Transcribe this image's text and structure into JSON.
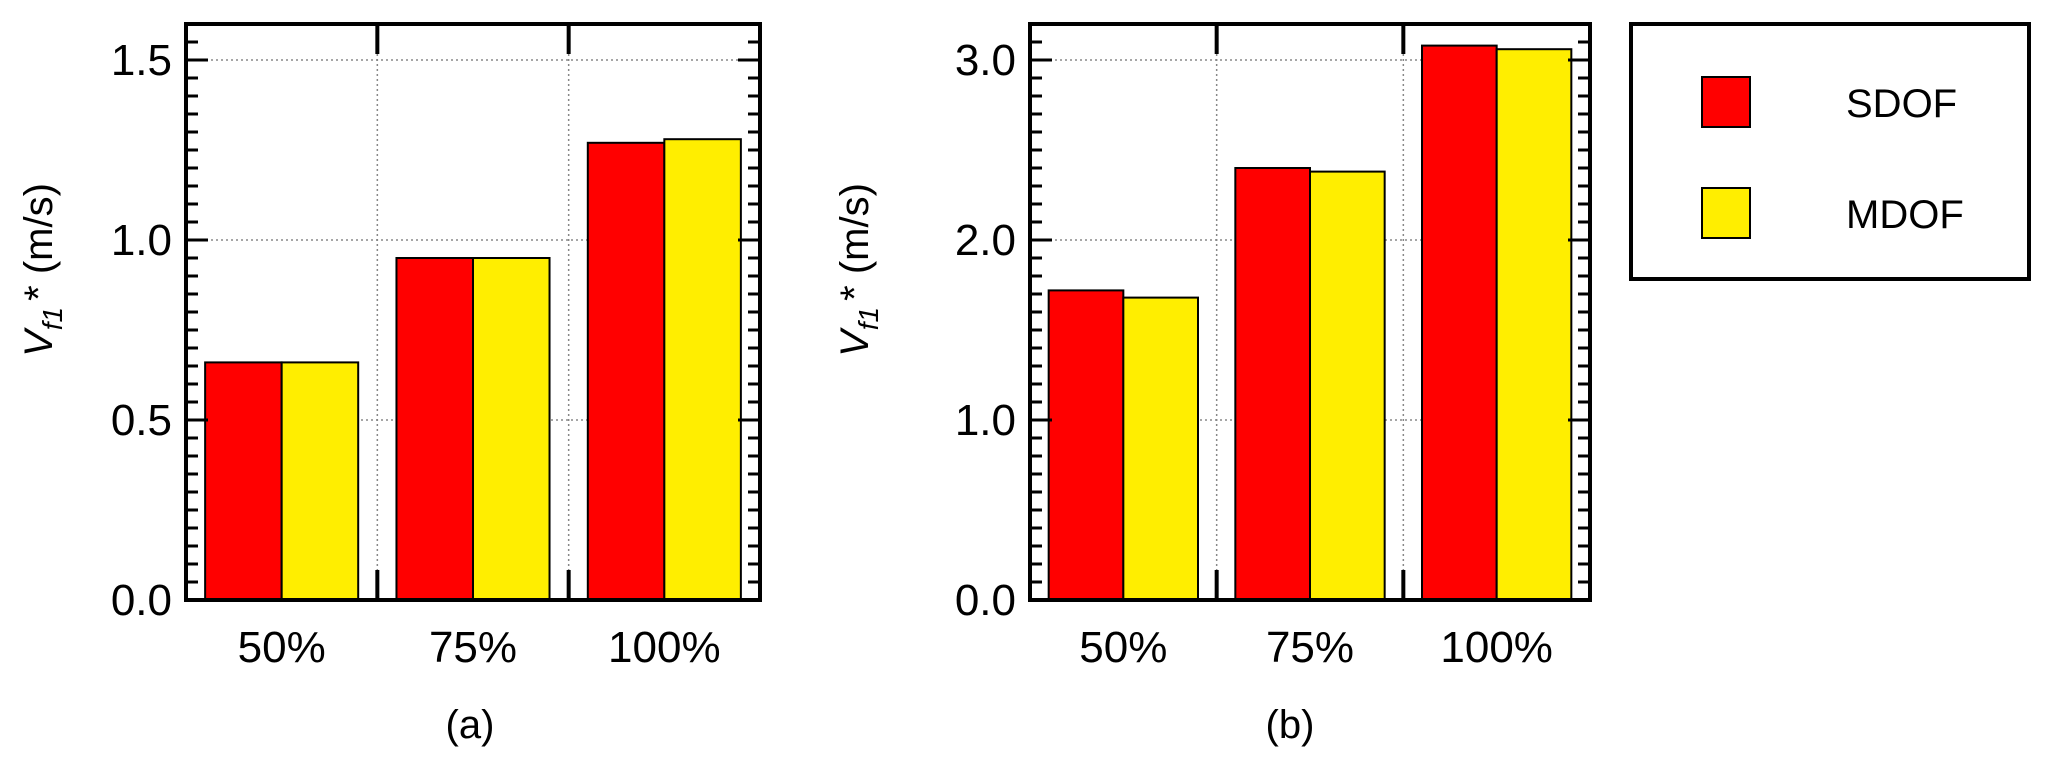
{
  "colors": {
    "SDOF": "#ff0000",
    "MDOF": "#ffee00"
  },
  "legend": {
    "entries": [
      "SDOF",
      "MDOF"
    ]
  },
  "chart_data": [
    {
      "type": "bar",
      "panel_label": "(a)",
      "categories": [
        "50%",
        "75%",
        "100%"
      ],
      "series": [
        {
          "name": "SDOF",
          "values": [
            0.66,
            0.95,
            1.27
          ]
        },
        {
          "name": "MDOF",
          "values": [
            0.66,
            0.95,
            1.28
          ]
        }
      ],
      "ylabel_main": "V",
      "ylabel_sub": "f1",
      "ylabel_rest": "* (m/s)",
      "ylim": [
        0,
        1.6
      ],
      "yticks": [
        0.0,
        0.5,
        1.0,
        1.5
      ],
      "ytick_labels": [
        "0.0",
        "0.5",
        "1.0",
        "1.5"
      ],
      "grid": true
    },
    {
      "type": "bar",
      "panel_label": "(b)",
      "categories": [
        "50%",
        "75%",
        "100%"
      ],
      "series": [
        {
          "name": "SDOF",
          "values": [
            1.72,
            2.4,
            3.08
          ]
        },
        {
          "name": "MDOF",
          "values": [
            1.68,
            2.38,
            3.06
          ]
        }
      ],
      "ylabel_main": "V",
      "ylabel_sub": "f1",
      "ylabel_rest": "* (m/s)",
      "ylim": [
        0,
        3.2
      ],
      "yticks": [
        0.0,
        1.0,
        2.0,
        3.0
      ],
      "ytick_labels": [
        "0.0",
        "1.0",
        "2.0",
        "3.0"
      ],
      "grid": true
    }
  ]
}
